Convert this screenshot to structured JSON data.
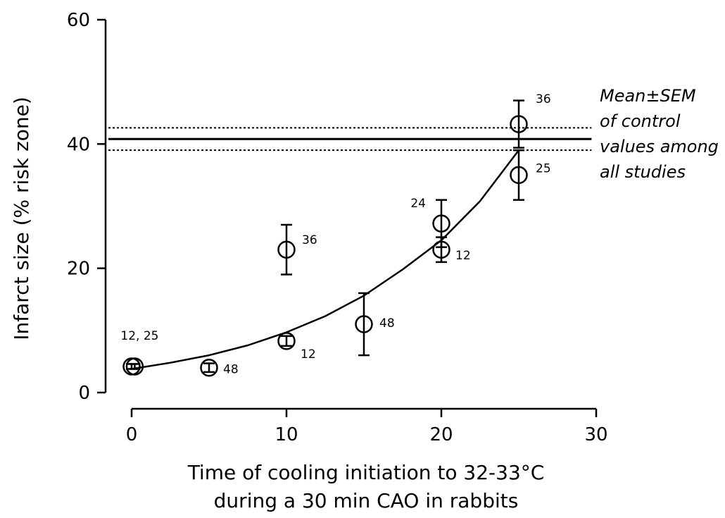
{
  "chart_data": {
    "type": "scatter",
    "xlabel": [
      "Time of cooling initiation to 32-33°C",
      "during a 30 min CAO in rabbits"
    ],
    "ylabel": "Infarct size (% risk zone)",
    "xlim": [
      0,
      30
    ],
    "ylim": [
      0,
      60
    ],
    "xticks": [
      0,
      10,
      20,
      30
    ],
    "yticks": [
      0,
      20,
      40,
      60
    ],
    "grid": false,
    "points": [
      {
        "x": 0,
        "y": 4.2,
        "err": 0.4,
        "label": ""
      },
      {
        "x": 0.2,
        "y": 4.2,
        "err": 0.4,
        "label": "12, 25"
      },
      {
        "x": 5,
        "y": 4.0,
        "err": 0.7,
        "label": "48"
      },
      {
        "x": 10,
        "y": 8.3,
        "err": 0.8,
        "label": "12"
      },
      {
        "x": 10,
        "y": 23,
        "err": 4,
        "label": "36"
      },
      {
        "x": 15,
        "y": 11,
        "err": 5,
        "label": "48"
      },
      {
        "x": 20,
        "y": 27.2,
        "err": 3.8,
        "label": "24"
      },
      {
        "x": 20,
        "y": 23,
        "err": 2,
        "label": "12"
      },
      {
        "x": 25,
        "y": 35,
        "err": 4,
        "label": "25"
      },
      {
        "x": 25,
        "y": 43.2,
        "err": 3.8,
        "label": "36"
      }
    ],
    "fit_curve": {
      "x": [
        0,
        2.5,
        5,
        7.5,
        10,
        12.5,
        15,
        17.5,
        20,
        22.5,
        25
      ],
      "y": [
        3.8,
        4.8,
        6.0,
        7.6,
        9.7,
        12.3,
        15.6,
        19.8,
        24.5,
        30.8,
        39.0
      ]
    },
    "control": {
      "mean": 40.8,
      "sem_low": 39.0,
      "sem_high": 42.6,
      "note": [
        "Mean±SEM",
        "of control",
        "values among",
        "all studies"
      ]
    }
  }
}
